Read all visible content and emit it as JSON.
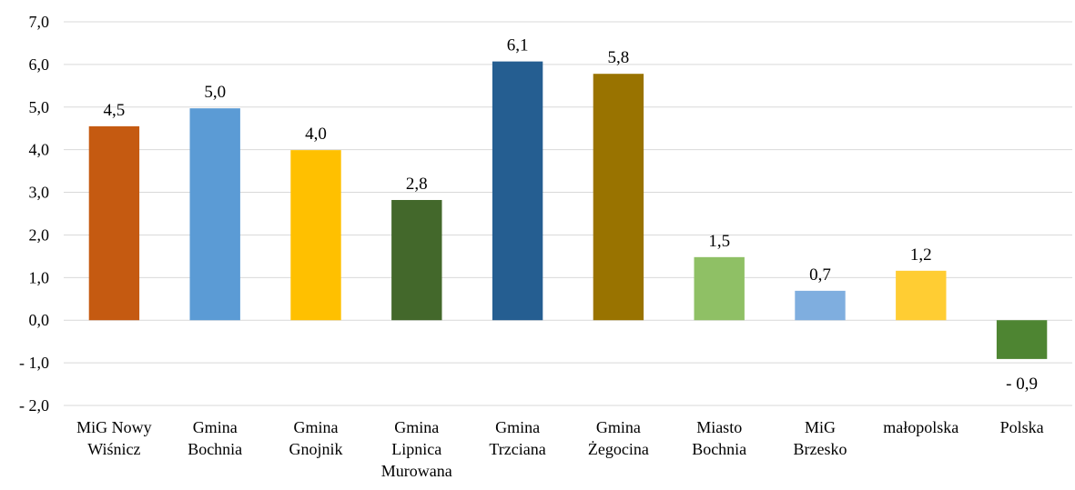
{
  "chart_data": {
    "type": "bar",
    "categories": [
      [
        "MiG Nowy",
        "Wiśnicz"
      ],
      [
        "Gmina",
        "Bochnia"
      ],
      [
        "Gmina",
        "Gnojnik"
      ],
      [
        "Gmina",
        "Lipnica",
        "Murowana"
      ],
      [
        "Gmina",
        "Trzciana"
      ],
      [
        "Gmina",
        "Żegocina"
      ],
      [
        "Miasto",
        "Bochnia"
      ],
      [
        "MiG",
        "Brzesko"
      ],
      [
        "małopolska"
      ],
      [
        "Polska"
      ]
    ],
    "values": [
      4.55,
      4.97,
      3.99,
      2.82,
      6.07,
      5.78,
      1.48,
      0.69,
      1.16,
      -0.91
    ],
    "data_labels": [
      "4,5",
      "5,0",
      "4,0",
      "2,8",
      "6,1",
      "5,8",
      "1,5",
      "0,7",
      "1,2",
      "- 0,9"
    ],
    "colors": [
      "#c55a11",
      "#5b9bd5",
      "#ffc000",
      "#43682b",
      "#255e91",
      "#997300",
      "#8fc065",
      "#7faedf",
      "#ffcd33",
      "#4e8532"
    ],
    "ylim": [
      -2,
      7
    ],
    "yticks": [
      7,
      6,
      5,
      4,
      3,
      2,
      1,
      0,
      -1,
      -2
    ],
    "ytick_labels": [
      "7,0",
      "6,0",
      "5,0",
      "4,0",
      "3,0",
      "2,0",
      "1,0",
      "0,0",
      "- 1,0",
      "- 2,0"
    ],
    "grid": true,
    "title": "",
    "xlabel": "",
    "ylabel": ""
  }
}
